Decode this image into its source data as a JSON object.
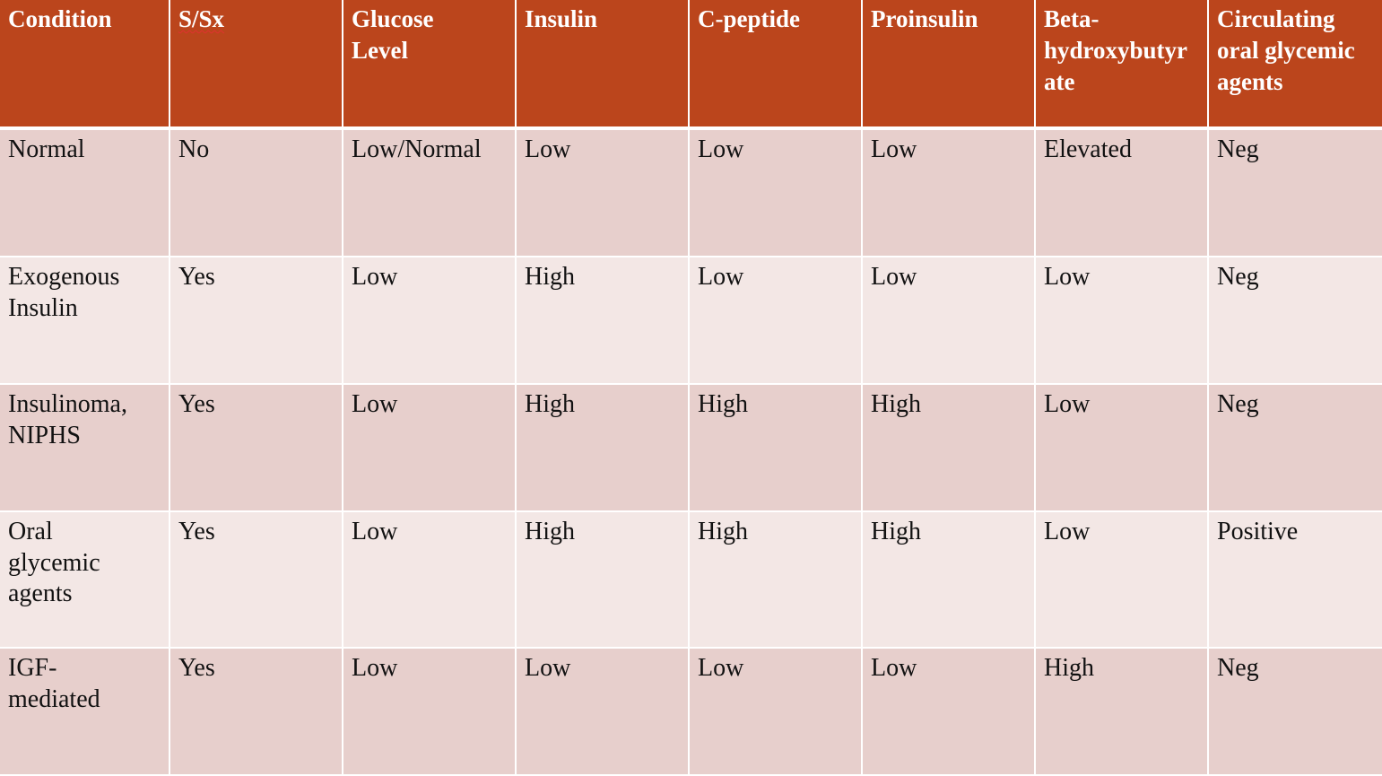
{
  "table": {
    "columns": [
      "Condition",
      "S/Sx",
      "Glucose\nLevel",
      "Insulin",
      "C-peptide",
      "Proinsulin",
      "Beta-\nhydroxybutyr\nate",
      "Circulating\noral glycemic\nagents"
    ],
    "rows": [
      [
        "Normal",
        "No",
        "Low/Normal",
        "Low",
        "Low",
        "Low",
        "Elevated",
        "Neg"
      ],
      [
        "Exogenous\nInsulin",
        "Yes",
        "Low",
        "High",
        "Low",
        "Low",
        "Low",
        "Neg"
      ],
      [
        "Insulinoma,\nNIPHS",
        "Yes",
        "Low",
        "High",
        "High",
        "High",
        "Low",
        "Neg"
      ],
      [
        "Oral\nglycemic\nagents",
        "Yes",
        "Low",
        "High",
        "High",
        "High",
        "Low",
        "Positive"
      ],
      [
        "IGF-\nmediated",
        "Yes",
        "Low",
        "Low",
        "Low",
        "Low",
        "High",
        "Neg"
      ]
    ]
  },
  "colors": {
    "header_bg": "#bb451c",
    "row_odd_bg": "#e7cfcc",
    "row_even_bg": "#f3e7e5",
    "header_text": "#ffffff",
    "body_text": "#111111"
  }
}
